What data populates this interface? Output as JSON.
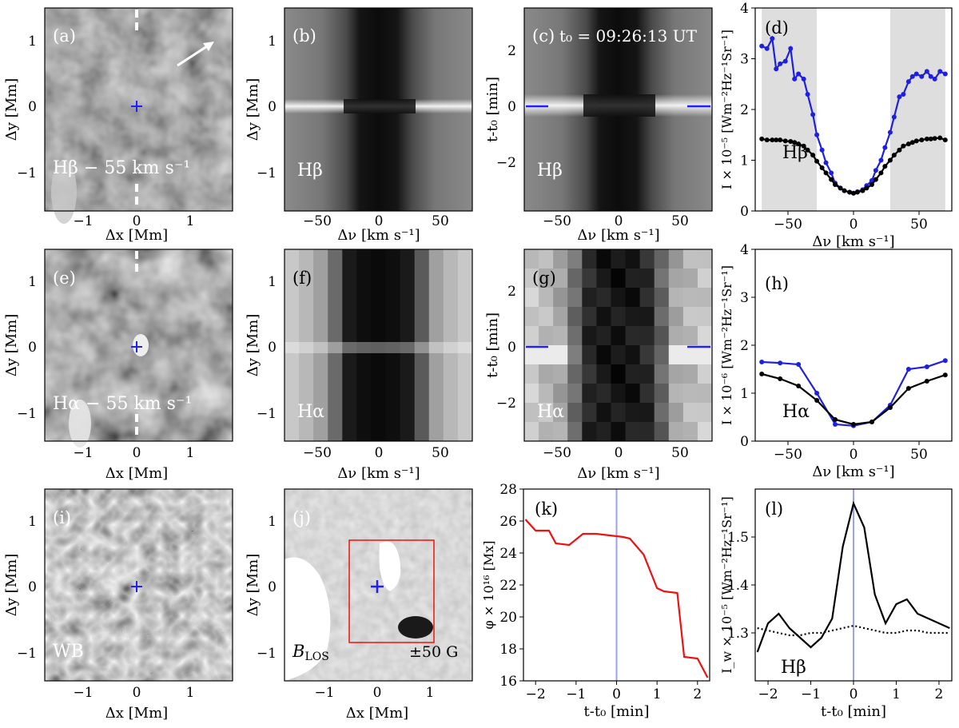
{
  "figure": {
    "panels": {
      "a": {
        "letter": "(a)",
        "label": "Hβ − 55 km s⁻¹",
        "xlabel": "Δx [Mm]",
        "ylabel": "Δy [Mm]"
      },
      "b": {
        "letter": "(b)",
        "label": "Hβ",
        "xlabel": "Δν [km s⁻¹]",
        "ylabel": "Δy [Mm]"
      },
      "c": {
        "letter": "(c)",
        "label": "Hβ",
        "time_label": "t₀ = 09:26:13 UT",
        "xlabel": "Δν [km s⁻¹]",
        "ylabel": "t-t₀ [min]"
      },
      "e": {
        "letter": "(e)",
        "label": "Hα − 55 km s⁻¹",
        "xlabel": "Δx [Mm]",
        "ylabel": "Δy [Mm]"
      },
      "f": {
        "letter": "(f)",
        "label": "Hα",
        "xlabel": "Δν [km s⁻¹]",
        "ylabel": "Δy [Mm]"
      },
      "g": {
        "letter": "(g)",
        "label": "Hα",
        "xlabel": "Δν [km s⁻¹]",
        "ylabel": "t-t₀ [min]"
      },
      "i": {
        "letter": "(i)",
        "label": "WB",
        "xlabel": "Δx [Mm]",
        "ylabel": "Δy [Mm]"
      },
      "j": {
        "letter": "(j)",
        "label": "B",
        "label_sub": "LOS",
        "range_label": "±50 G",
        "xlabel": "Δx [Mm]",
        "ylabel": "Δy [Mm]"
      }
    },
    "ticks": {
      "mm_x": [
        "−1",
        "0",
        "1"
      ],
      "mm_y": [
        "1",
        "0",
        "−1"
      ],
      "vel_x": [
        "−50",
        "0",
        "50"
      ],
      "time_y": [
        "2",
        "0",
        "−2"
      ]
    }
  },
  "chart_data": [
    {
      "panel": "d",
      "type": "line",
      "letter": "(d)",
      "label": "Hβ",
      "xlabel": "Δν [km s⁻¹]",
      "ylabel": "I × 10⁻⁵ [Wm⁻²Hz⁻¹Sr⁻¹]",
      "xlim": [
        -75,
        75
      ],
      "ylim": [
        0,
        4
      ],
      "xticks": [
        -50,
        0,
        50
      ],
      "yticks": [
        0,
        1,
        2,
        3,
        4
      ],
      "shaded_ranges": [
        [
          -70,
          -28
        ],
        [
          28,
          70
        ]
      ],
      "colors": {
        "line1": "#1f1fe0",
        "line2": "#000000"
      },
      "x": [
        -70,
        -66,
        -62,
        -59,
        -56,
        -52,
        -48,
        -45,
        -42,
        -38,
        -35,
        -31,
        -28,
        -24,
        -21,
        -17,
        -14,
        -10,
        -7,
        -3,
        0,
        3,
        7,
        10,
        14,
        17,
        21,
        24,
        28,
        31,
        35,
        38,
        42,
        45,
        48,
        52,
        56,
        59,
        62,
        66,
        70
      ],
      "series": [
        {
          "values": [
            3.25,
            3.2,
            3.4,
            2.8,
            2.9,
            2.95,
            3.2,
            2.6,
            2.7,
            2.6,
            2.3,
            1.9,
            1.5,
            1.2,
            0.95,
            0.75,
            0.55,
            0.45,
            0.4,
            0.37,
            0.35,
            0.38,
            0.42,
            0.5,
            0.6,
            0.8,
            1.0,
            1.25,
            1.55,
            1.85,
            2.25,
            2.3,
            2.55,
            2.65,
            2.7,
            2.65,
            2.75,
            2.65,
            2.6,
            2.75,
            2.7
          ]
        },
        {
          "values": [
            1.42,
            1.4,
            1.4,
            1.4,
            1.4,
            1.38,
            1.37,
            1.35,
            1.32,
            1.28,
            1.2,
            1.1,
            0.98,
            0.85,
            0.75,
            0.62,
            0.52,
            0.45,
            0.4,
            0.37,
            0.35,
            0.37,
            0.4,
            0.45,
            0.52,
            0.62,
            0.75,
            0.88,
            1.0,
            1.1,
            1.2,
            1.28,
            1.32,
            1.35,
            1.38,
            1.4,
            1.42,
            1.42,
            1.43,
            1.44,
            1.4
          ]
        }
      ]
    },
    {
      "panel": "h",
      "type": "line",
      "letter": "(h)",
      "label": "Hα",
      "xlabel": "Δν [km s⁻¹]",
      "ylabel": "I × 10⁻⁶ [Wm⁻²Hz⁻¹Sr⁻¹]",
      "xlim": [
        -75,
        75
      ],
      "ylim": [
        0,
        4
      ],
      "xticks": [
        -50,
        0,
        50
      ],
      "yticks": [
        0,
        1,
        2,
        3,
        4
      ],
      "colors": {
        "line1": "#1f1fe0",
        "line2": "#000000"
      },
      "x": [
        -70,
        -56,
        -42,
        -28,
        -14,
        0,
        14,
        28,
        42,
        56,
        70
      ],
      "series": [
        {
          "values": [
            1.65,
            1.63,
            1.6,
            1.0,
            0.35,
            0.32,
            0.4,
            0.75,
            1.5,
            1.55,
            1.68
          ]
        },
        {
          "values": [
            1.4,
            1.3,
            1.15,
            0.85,
            0.45,
            0.35,
            0.4,
            0.7,
            1.1,
            1.25,
            1.38
          ]
        }
      ]
    },
    {
      "panel": "k",
      "type": "line",
      "letter": "(k)",
      "xlabel": "t-t₀ [min]",
      "ylabel": "φ × 10¹⁶ [Mx]",
      "xlim": [
        -2.3,
        2.3
      ],
      "ylim": [
        16,
        28
      ],
      "xticks": [
        -2,
        -1,
        0,
        1,
        2
      ],
      "yticks": [
        16,
        18,
        20,
        22,
        24,
        26,
        28
      ],
      "vline": 0,
      "colors": {
        "line1": "#ee1111",
        "vline": "#9aa3f0"
      },
      "x": [
        -2.25,
        -2.0,
        -1.67,
        -1.5,
        -1.17,
        -0.83,
        -0.5,
        -0.17,
        0.17,
        0.33,
        0.67,
        1.0,
        1.17,
        1.5,
        1.67,
        2.0,
        2.25
      ],
      "series": [
        {
          "values": [
            26.1,
            25.4,
            25.4,
            24.6,
            24.5,
            25.2,
            25.2,
            25.1,
            25.0,
            24.9,
            23.9,
            21.8,
            21.6,
            21.5,
            17.5,
            17.4,
            16.2
          ]
        }
      ]
    },
    {
      "panel": "l",
      "type": "line",
      "letter": "(l)",
      "label": "Hβ",
      "xlabel": "t-t₀ [min]",
      "ylabel": "I_w × 10⁻⁵ [Wm⁻²Hz⁻¹Sr⁻¹]",
      "xlim": [
        -2.3,
        2.3
      ],
      "ylim": [
        1.2,
        1.6
      ],
      "xticks": [
        -2,
        -1,
        0,
        1,
        2
      ],
      "yticks": [
        1.3,
        1.4,
        1.5
      ],
      "vline": 0,
      "colors": {
        "line1": "#000000",
        "vline": "#9aa3f0"
      },
      "x": [
        -2.25,
        -2.0,
        -1.75,
        -1.5,
        -1.25,
        -1.0,
        -0.75,
        -0.5,
        -0.25,
        0.0,
        0.25,
        0.5,
        0.75,
        1.0,
        1.25,
        1.5,
        1.75,
        2.0,
        2.25
      ],
      "series": [
        {
          "values": [
            1.26,
            1.32,
            1.34,
            1.31,
            1.29,
            1.27,
            1.29,
            1.33,
            1.48,
            1.57,
            1.52,
            1.38,
            1.32,
            1.36,
            1.37,
            1.34,
            1.33,
            1.32,
            1.31
          ]
        },
        {
          "style": "dotted",
          "values": [
            1.31,
            1.305,
            1.3,
            1.295,
            1.295,
            1.3,
            1.3,
            1.305,
            1.31,
            1.315,
            1.31,
            1.305,
            1.3,
            1.3,
            1.305,
            1.305,
            1.3,
            1.3,
            1.3
          ]
        }
      ]
    }
  ]
}
